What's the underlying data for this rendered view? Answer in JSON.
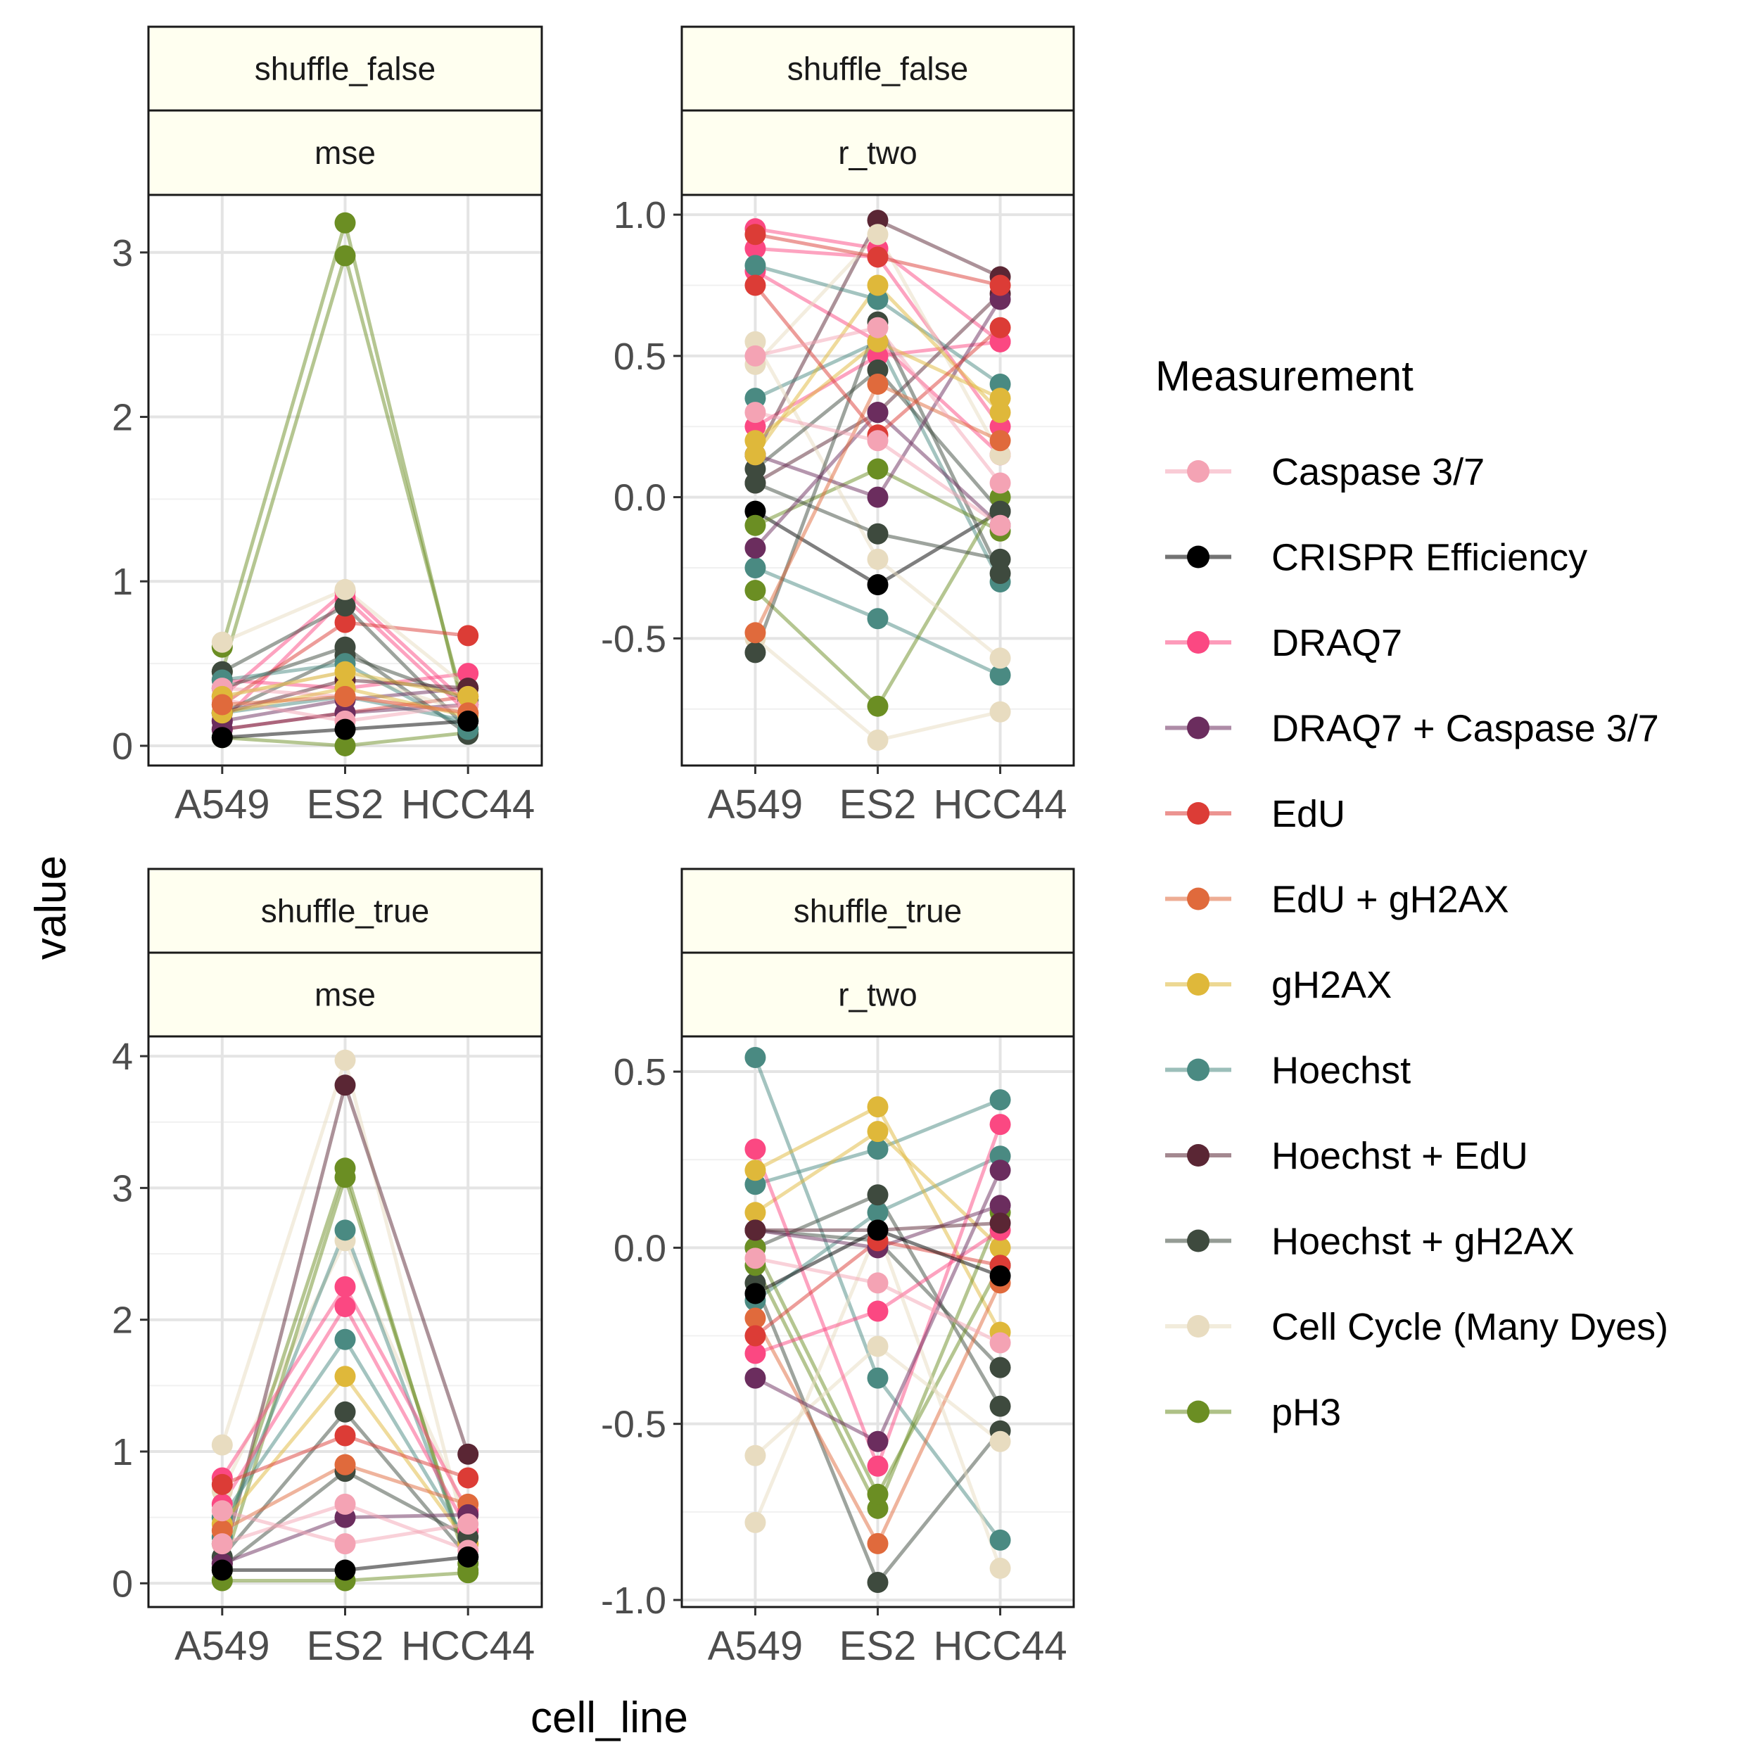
{
  "chart_data": {
    "type": "line",
    "xlabel": "cell_line",
    "ylabel": "value",
    "categories": [
      "A549",
      "ES2",
      "HCC44"
    ],
    "strip_fill": "#fffff0",
    "legend": {
      "title": "Measurement",
      "position": "right",
      "entries": [
        {
          "name": "Caspase 3/7",
          "color": "#f4a3b4"
        },
        {
          "name": "CRISPR Efficiency",
          "color": "#000000"
        },
        {
          "name": "DRAQ7",
          "color": "#fb4882"
        },
        {
          "name": "DRAQ7 + Caspase 3/7",
          "color": "#6b2d5e"
        },
        {
          "name": "EdU",
          "color": "#dc3c36"
        },
        {
          "name": "EdU + gH2AX",
          "color": "#e06a3c"
        },
        {
          "name": "gH2AX",
          "color": "#dfb83a"
        },
        {
          "name": "Hoechst",
          "color": "#4a8a82"
        },
        {
          "name": "Hoechst + EdU",
          "color": "#5a2634"
        },
        {
          "name": "Hoechst + gH2AX",
          "color": "#3e4a3e"
        },
        {
          "name": "Cell Cycle (Many Dyes)",
          "color": "#e8dcc0"
        },
        {
          "name": "pH3",
          "color": "#6b8e23"
        }
      ]
    },
    "panels": [
      {
        "strip_top": "shuffle_false",
        "strip_bottom": "mse",
        "ylim": [
          -0.12,
          3.35
        ],
        "yticks": [
          0,
          1,
          2,
          3
        ],
        "tick_labels": [
          "0",
          "1",
          "2",
          "3"
        ],
        "series": [
          {
            "measurement": "pH3",
            "values": [
              0.6,
              3.18,
              0.1
            ]
          },
          {
            "measurement": "pH3",
            "values": [
              0.45,
              2.98,
              0.15
            ]
          },
          {
            "measurement": "pH3",
            "values": [
              0.05,
              0.0,
              0.08
            ]
          },
          {
            "measurement": "DRAQ7",
            "values": [
              0.3,
              0.94,
              0.25
            ]
          },
          {
            "measurement": "DRAQ7",
            "values": [
              0.15,
              0.9,
              0.2
            ]
          },
          {
            "measurement": "DRAQ7",
            "values": [
              0.4,
              0.35,
              0.44
            ]
          },
          {
            "measurement": "EdU",
            "values": [
              0.25,
              0.75,
              0.67
            ]
          },
          {
            "measurement": "EdU",
            "values": [
              0.1,
              0.2,
              0.3
            ]
          },
          {
            "measurement": "Hoechst + gH2AX",
            "values": [
              0.45,
              0.85,
              0.1
            ]
          },
          {
            "measurement": "Hoechst + gH2AX",
            "values": [
              0.35,
              0.6,
              0.07
            ]
          },
          {
            "measurement": "Hoechst + gH2AX",
            "values": [
              0.2,
              0.55,
              0.28
            ]
          },
          {
            "measurement": "Cell Cycle (Many Dyes)",
            "values": [
              0.63,
              0.95,
              0.35
            ]
          },
          {
            "measurement": "Cell Cycle (Many Dyes)",
            "values": [
              0.3,
              0.45,
              0.2
            ]
          },
          {
            "measurement": "Hoechst",
            "values": [
              0.4,
              0.5,
              0.1
            ]
          },
          {
            "measurement": "Hoechst",
            "values": [
              0.2,
              0.3,
              0.15
            ]
          },
          {
            "measurement": "DRAQ7 + Caspase 3/7",
            "values": [
              0.15,
              0.28,
              0.35
            ]
          },
          {
            "measurement": "DRAQ7 + Caspase 3/7",
            "values": [
              0.1,
              0.2,
              0.25
            ]
          },
          {
            "measurement": "Hoechst + EdU",
            "values": [
              0.2,
              0.4,
              0.35
            ]
          },
          {
            "measurement": "Caspase 3/7",
            "values": [
              0.35,
              0.3,
              0.2
            ]
          },
          {
            "measurement": "Caspase 3/7",
            "values": [
              0.28,
              0.15,
              0.25
            ]
          },
          {
            "measurement": "gH2AX",
            "values": [
              0.3,
              0.45,
              0.3
            ]
          },
          {
            "measurement": "gH2AX",
            "values": [
              0.2,
              0.35,
              0.18
            ]
          },
          {
            "measurement": "EdU + gH2AX",
            "values": [
              0.25,
              0.3,
              0.2
            ]
          },
          {
            "measurement": "CRISPR Efficiency",
            "values": [
              0.05,
              0.1,
              0.15
            ]
          }
        ]
      },
      {
        "strip_top": "shuffle_false",
        "strip_bottom": "r_two",
        "ylim": [
          -0.95,
          1.07
        ],
        "yticks": [
          -0.5,
          0.0,
          0.5,
          1.0
        ],
        "tick_labels": [
          "-0.5",
          "0.0",
          "0.5",
          "1.0"
        ],
        "series": [
          {
            "measurement": "CRISPR Efficiency",
            "values": [
              -0.05,
              -0.31,
              -0.05
            ]
          },
          {
            "measurement": "DRAQ7",
            "values": [
              0.95,
              0.88,
              0.55
            ]
          },
          {
            "measurement": "DRAQ7",
            "values": [
              0.88,
              0.85,
              0.25
            ]
          },
          {
            "measurement": "DRAQ7",
            "values": [
              0.25,
              0.5,
              0.55
            ]
          },
          {
            "measurement": "DRAQ7",
            "values": [
              0.8,
              0.55,
              0.15
            ]
          },
          {
            "measurement": "Hoechst + EdU",
            "values": [
              0.15,
              0.98,
              0.78
            ]
          },
          {
            "measurement": "Hoechst + EdU",
            "values": [
              0.05,
              0.3,
              0.72
            ]
          },
          {
            "measurement": "Hoechst",
            "values": [
              0.82,
              0.7,
              0.4
            ]
          },
          {
            "measurement": "Hoechst",
            "values": [
              -0.25,
              -0.43,
              -0.63
            ]
          },
          {
            "measurement": "Hoechst",
            "values": [
              0.35,
              0.55,
              -0.3
            ]
          },
          {
            "measurement": "pH3",
            "values": [
              -0.33,
              -0.74,
              0.0
            ]
          },
          {
            "measurement": "pH3",
            "values": [
              -0.1,
              0.1,
              -0.12
            ]
          },
          {
            "measurement": "Cell Cycle (Many Dyes)",
            "values": [
              -0.5,
              -0.86,
              -0.76
            ]
          },
          {
            "measurement": "Cell Cycle (Many Dyes)",
            "values": [
              0.55,
              -0.22,
              -0.57
            ]
          },
          {
            "measurement": "Cell Cycle (Many Dyes)",
            "values": [
              0.47,
              0.93,
              0.15
            ]
          },
          {
            "measurement": "Hoechst + gH2AX",
            "values": [
              -0.55,
              0.62,
              -0.27
            ]
          },
          {
            "measurement": "Hoechst + gH2AX",
            "values": [
              0.05,
              -0.13,
              -0.22
            ]
          },
          {
            "measurement": "Hoechst + gH2AX",
            "values": [
              0.1,
              0.45,
              -0.05
            ]
          },
          {
            "measurement": "DRAQ7 + Caspase 3/7",
            "values": [
              0.15,
              0.0,
              0.7
            ]
          },
          {
            "measurement": "DRAQ7 + Caspase 3/7",
            "values": [
              -0.18,
              0.3,
              -0.1
            ]
          },
          {
            "measurement": "gH2AX",
            "values": [
              0.15,
              0.75,
              0.3
            ]
          },
          {
            "measurement": "gH2AX",
            "values": [
              0.2,
              0.55,
              0.35
            ]
          },
          {
            "measurement": "EdU",
            "values": [
              0.75,
              0.22,
              0.6
            ]
          },
          {
            "measurement": "EdU",
            "values": [
              0.93,
              0.85,
              0.75
            ]
          },
          {
            "measurement": "EdU + gH2AX",
            "values": [
              -0.48,
              0.4,
              0.2
            ]
          },
          {
            "measurement": "Caspase 3/7",
            "values": [
              0.5,
              0.6,
              0.05
            ]
          },
          {
            "measurement": "Caspase 3/7",
            "values": [
              0.3,
              0.2,
              -0.1
            ]
          }
        ]
      },
      {
        "strip_top": "shuffle_true",
        "strip_bottom": "mse",
        "ylim": [
          -0.18,
          4.15
        ],
        "yticks": [
          0,
          1,
          2,
          3,
          4
        ],
        "tick_labels": [
          "0",
          "1",
          "2",
          "3",
          "4"
        ],
        "series": [
          {
            "measurement": "Cell Cycle (Many Dyes)",
            "values": [
              1.05,
              3.97,
              0.3
            ]
          },
          {
            "measurement": "Cell Cycle (Many Dyes)",
            "values": [
              0.7,
              2.6,
              0.5
            ]
          },
          {
            "measurement": "Hoechst + EdU",
            "values": [
              0.15,
              3.78,
              0.98
            ]
          },
          {
            "measurement": "pH3",
            "values": [
              0.3,
              3.15,
              0.1
            ]
          },
          {
            "measurement": "pH3",
            "values": [
              0.1,
              3.08,
              0.15
            ]
          },
          {
            "measurement": "pH3",
            "values": [
              0.02,
              0.02,
              0.08
            ]
          },
          {
            "measurement": "Hoechst",
            "values": [
              0.35,
              2.68,
              0.2
            ]
          },
          {
            "measurement": "Hoechst",
            "values": [
              0.5,
              1.85,
              0.3
            ]
          },
          {
            "measurement": "DRAQ7",
            "values": [
              0.8,
              2.25,
              0.55
            ]
          },
          {
            "measurement": "DRAQ7",
            "values": [
              0.6,
              2.1,
              0.4
            ]
          },
          {
            "measurement": "gH2AX",
            "values": [
              0.45,
              1.57,
              0.3
            ]
          },
          {
            "measurement": "Hoechst + gH2AX",
            "values": [
              0.2,
              1.3,
              0.2
            ]
          },
          {
            "measurement": "Hoechst + gH2AX",
            "values": [
              0.12,
              0.85,
              0.35
            ]
          },
          {
            "measurement": "EdU",
            "values": [
              0.75,
              1.12,
              0.8
            ]
          },
          {
            "measurement": "EdU + gH2AX",
            "values": [
              0.4,
              0.9,
              0.6
            ]
          },
          {
            "measurement": "DRAQ7 + Caspase 3/7",
            "values": [
              0.15,
              0.5,
              0.52
            ]
          },
          {
            "measurement": "Caspase 3/7",
            "values": [
              0.55,
              0.3,
              0.45
            ]
          },
          {
            "measurement": "Caspase 3/7",
            "values": [
              0.3,
              0.6,
              0.25
            ]
          },
          {
            "measurement": "CRISPR Efficiency",
            "values": [
              0.1,
              0.1,
              0.2
            ]
          }
        ]
      },
      {
        "strip_top": "shuffle_true",
        "strip_bottom": "r_two",
        "ylim": [
          -1.02,
          0.6
        ],
        "yticks": [
          -1.0,
          -0.5,
          0.0,
          0.5
        ],
        "tick_labels": [
          "-1.0",
          "-0.5",
          "0.0",
          "0.5"
        ],
        "series": [
          {
            "measurement": "Hoechst",
            "values": [
              0.54,
              -0.37,
              -0.83
            ]
          },
          {
            "measurement": "Hoechst",
            "values": [
              0.18,
              0.28,
              0.42
            ]
          },
          {
            "measurement": "Hoechst",
            "values": [
              -0.15,
              0.1,
              0.26
            ]
          },
          {
            "measurement": "Hoechst + gH2AX",
            "values": [
              -0.1,
              -0.95,
              -0.52
            ]
          },
          {
            "measurement": "Hoechst + gH2AX",
            "values": [
              0.0,
              0.15,
              -0.45
            ]
          },
          {
            "measurement": "Hoechst + gH2AX",
            "values": [
              0.05,
              0.02,
              -0.34
            ]
          },
          {
            "measurement": "gH2AX",
            "values": [
              0.22,
              0.4,
              -0.24
            ]
          },
          {
            "measurement": "gH2AX",
            "values": [
              0.1,
              0.33,
              0.0
            ]
          },
          {
            "measurement": "EdU + gH2AX",
            "values": [
              -0.2,
              -0.84,
              -0.1
            ]
          },
          {
            "measurement": "pH3",
            "values": [
              -0.05,
              -0.74,
              0.1
            ]
          },
          {
            "measurement": "pH3",
            "values": [
              0.0,
              -0.7,
              -0.05
            ]
          },
          {
            "measurement": "Cell Cycle (Many Dyes)",
            "values": [
              -0.78,
              0.05,
              -0.91
            ]
          },
          {
            "measurement": "Cell Cycle (Many Dyes)",
            "values": [
              -0.59,
              -0.28,
              -0.55
            ]
          },
          {
            "measurement": "DRAQ7",
            "values": [
              0.28,
              -0.62,
              0.35
            ]
          },
          {
            "measurement": "DRAQ7",
            "values": [
              -0.3,
              -0.18,
              0.05
            ]
          },
          {
            "measurement": "DRAQ7 + Caspase 3/7",
            "values": [
              -0.37,
              -0.55,
              0.22
            ]
          },
          {
            "measurement": "DRAQ7 + Caspase 3/7",
            "values": [
              0.05,
              0.0,
              0.12
            ]
          },
          {
            "measurement": "Hoechst + EdU",
            "values": [
              0.05,
              0.05,
              0.07
            ]
          },
          {
            "measurement": "EdU",
            "values": [
              -0.25,
              0.02,
              -0.05
            ]
          },
          {
            "measurement": "Caspase 3/7",
            "values": [
              -0.03,
              -0.1,
              -0.27
            ]
          },
          {
            "measurement": "CRISPR Efficiency",
            "values": [
              -0.13,
              0.05,
              -0.08
            ]
          }
        ]
      }
    ]
  }
}
